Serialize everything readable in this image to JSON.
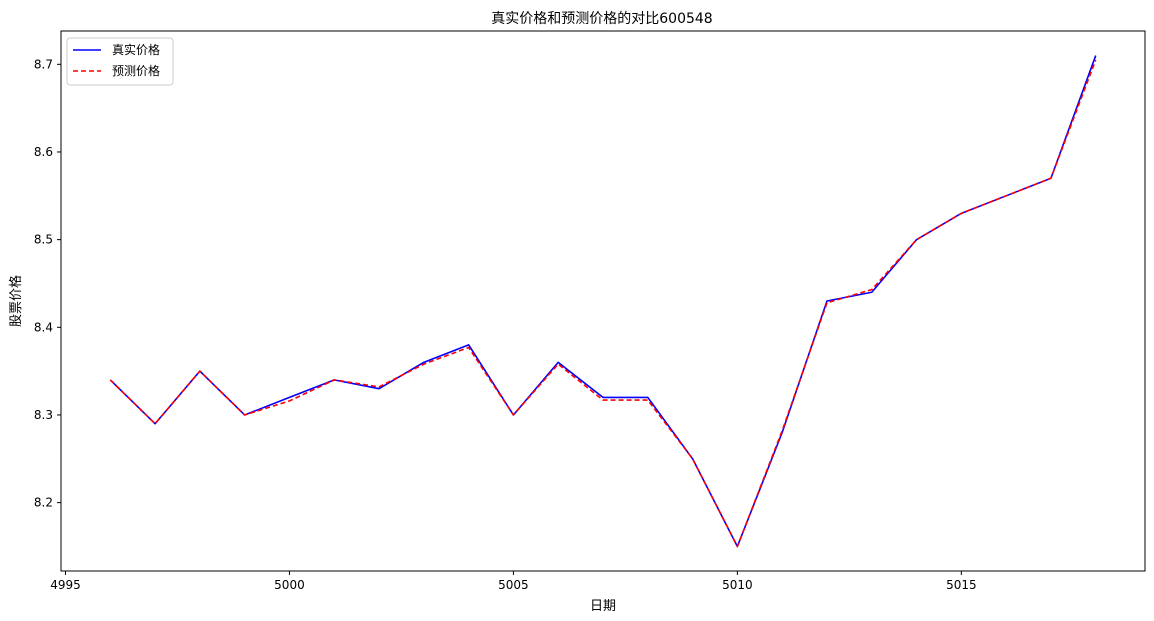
{
  "chart_data": {
    "type": "line",
    "title": "真实价格和预测价格的对比600548",
    "xlabel": "日期",
    "ylabel": "股票价格",
    "xlim": [
      4994.9,
      5019.1
    ],
    "ylim": [
      8.122,
      8.738
    ],
    "x_ticks": [
      4995,
      5000,
      5005,
      5010,
      5015
    ],
    "x_tick_labels": [
      "4995",
      "5000",
      "5005",
      "5010",
      "5015"
    ],
    "y_ticks": [
      8.2,
      8.3,
      8.4,
      8.5,
      8.6,
      8.7
    ],
    "y_tick_labels": [
      "8.2",
      "8.3",
      "8.4",
      "8.5",
      "8.6",
      "8.7"
    ],
    "grid": false,
    "legend_position": "top-left",
    "x": [
      4996,
      4997,
      4998,
      4999,
      5000,
      5001,
      5002,
      5003,
      5004,
      5005,
      5006,
      5007,
      5008,
      5009,
      5010,
      5011,
      5012,
      5013,
      5014,
      5015,
      5016,
      5017,
      5018
    ],
    "series": [
      {
        "name": "真实价格",
        "color": "#0000ff",
        "dash": "solid",
        "values": [
          8.34,
          8.29,
          8.35,
          8.3,
          8.32,
          8.34,
          8.33,
          8.36,
          8.38,
          8.3,
          8.36,
          8.32,
          8.32,
          8.25,
          8.15,
          8.28,
          8.43,
          8.44,
          8.5,
          8.53,
          8.55,
          8.57,
          8.71
        ]
      },
      {
        "name": "预测价格",
        "color": "#ff0000",
        "dash": "dashed",
        "values": [
          8.34,
          8.29,
          8.35,
          8.3,
          8.316,
          8.34,
          8.332,
          8.358,
          8.377,
          8.3,
          8.358,
          8.317,
          8.317,
          8.25,
          8.15,
          8.282,
          8.428,
          8.443,
          8.5,
          8.53,
          8.55,
          8.57,
          8.705
        ]
      }
    ]
  }
}
